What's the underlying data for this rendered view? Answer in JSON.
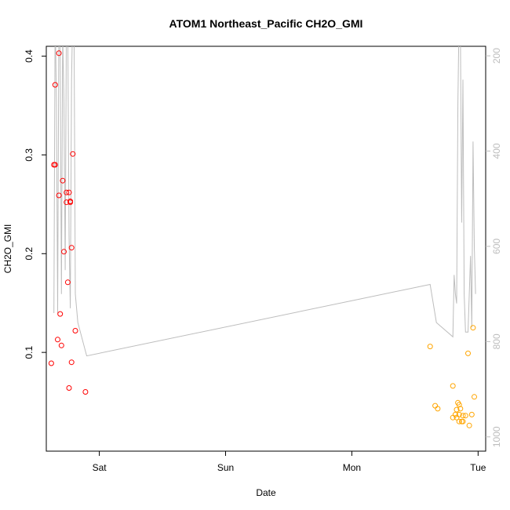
{
  "chart_data": {
    "type": "scatter",
    "title": "ATOM1 Northeast_Pacific CH2O_GMI",
    "xlabel": "Date",
    "ylabel": "CH2O_GMI",
    "x_range": [
      -0.42,
      3.06
    ],
    "ylim": [
      0.0,
      0.41
    ],
    "y2lim": [
      1030,
      180
    ],
    "x_ticks": [
      {
        "value": 0,
        "label": "Sat"
      },
      {
        "value": 1,
        "label": "Sun"
      },
      {
        "value": 2,
        "label": "Mon"
      },
      {
        "value": 3,
        "label": "Tue"
      }
    ],
    "y_ticks": [
      {
        "value": 0.1,
        "label": "0.1"
      },
      {
        "value": 0.2,
        "label": "0.2"
      },
      {
        "value": 0.3,
        "label": "0.3"
      },
      {
        "value": 0.4,
        "label": "0.4"
      }
    ],
    "y2_ticks": [
      {
        "value": 200,
        "label": "200"
      },
      {
        "value": 400,
        "label": "400"
      },
      {
        "value": 600,
        "label": "600"
      },
      {
        "value": 800,
        "label": "800"
      },
      {
        "value": 1000,
        "label": "1000"
      }
    ],
    "series": [
      {
        "color": "#ff0000",
        "points": [
          {
            "x": -0.38,
            "y": 0.089
          },
          {
            "x": -0.36,
            "y": 0.29
          },
          {
            "x": -0.35,
            "y": 0.29
          },
          {
            "x": -0.35,
            "y": 0.371
          },
          {
            "x": -0.33,
            "y": 0.113
          },
          {
            "x": -0.32,
            "y": 0.403
          },
          {
            "x": -0.32,
            "y": 0.259
          },
          {
            "x": -0.31,
            "y": 0.139
          },
          {
            "x": -0.3,
            "y": 0.107
          },
          {
            "x": -0.29,
            "y": 0.274
          },
          {
            "x": -0.28,
            "y": 0.202
          },
          {
            "x": -0.26,
            "y": 0.262
          },
          {
            "x": -0.26,
            "y": 0.252
          },
          {
            "x": -0.25,
            "y": 0.171
          },
          {
            "x": -0.24,
            "y": 0.064
          },
          {
            "x": -0.24,
            "y": 0.262
          },
          {
            "x": -0.23,
            "y": 0.252
          },
          {
            "x": -0.23,
            "y": 0.253
          },
          {
            "x": -0.22,
            "y": 0.09
          },
          {
            "x": -0.22,
            "y": 0.206
          },
          {
            "x": -0.21,
            "y": 0.301
          },
          {
            "x": -0.19,
            "y": 0.122
          },
          {
            "x": -0.11,
            "y": 0.06
          }
        ]
      },
      {
        "color": "#ffa500",
        "points": [
          {
            "x": 2.62,
            "y": 0.106
          },
          {
            "x": 2.66,
            "y": 0.046
          },
          {
            "x": 2.68,
            "y": 0.043
          },
          {
            "x": 2.8,
            "y": 0.066
          },
          {
            "x": 2.8,
            "y": 0.034
          },
          {
            "x": 2.82,
            "y": 0.037
          },
          {
            "x": 2.83,
            "y": 0.042
          },
          {
            "x": 2.83,
            "y": 0.034
          },
          {
            "x": 2.84,
            "y": 0.049
          },
          {
            "x": 2.85,
            "y": 0.037
          },
          {
            "x": 2.85,
            "y": 0.047
          },
          {
            "x": 2.85,
            "y": 0.03
          },
          {
            "x": 2.86,
            "y": 0.043
          },
          {
            "x": 2.87,
            "y": 0.03
          },
          {
            "x": 2.88,
            "y": 0.036
          },
          {
            "x": 2.88,
            "y": 0.03
          },
          {
            "x": 2.9,
            "y": 0.036
          },
          {
            "x": 2.92,
            "y": 0.099
          },
          {
            "x": 2.93,
            "y": 0.026
          },
          {
            "x": 2.95,
            "y": 0.037
          },
          {
            "x": 2.96,
            "y": 0.125
          },
          {
            "x": 2.97,
            "y": 0.055
          }
        ]
      }
    ],
    "pressure_line": {
      "color": "#bdbdbd",
      "points": [
        {
          "x": -0.36,
          "y": 740
        },
        {
          "x": -0.35,
          "y": 100
        },
        {
          "x": -0.34,
          "y": 300
        },
        {
          "x": -0.33,
          "y": 740
        },
        {
          "x": -0.32,
          "y": 100
        },
        {
          "x": -0.31,
          "y": 200
        },
        {
          "x": -0.3,
          "y": 700
        },
        {
          "x": -0.29,
          "y": 150
        },
        {
          "x": -0.28,
          "y": 300
        },
        {
          "x": -0.27,
          "y": 650
        },
        {
          "x": -0.26,
          "y": 100
        },
        {
          "x": -0.25,
          "y": 150
        },
        {
          "x": -0.24,
          "y": 580
        },
        {
          "x": -0.23,
          "y": 730
        },
        {
          "x": -0.22,
          "y": 250
        },
        {
          "x": -0.21,
          "y": 100
        },
        {
          "x": -0.2,
          "y": 150
        },
        {
          "x": -0.19,
          "y": 700
        },
        {
          "x": -0.17,
          "y": 760
        },
        {
          "x": -0.1,
          "y": 830
        },
        {
          "x": 2.62,
          "y": 680
        },
        {
          "x": 2.67,
          "y": 760
        },
        {
          "x": 2.8,
          "y": 790
        },
        {
          "x": 2.81,
          "y": 660
        },
        {
          "x": 2.82,
          "y": 700
        },
        {
          "x": 2.83,
          "y": 720
        },
        {
          "x": 2.84,
          "y": 300
        },
        {
          "x": 2.85,
          "y": 100
        },
        {
          "x": 2.86,
          "y": 150
        },
        {
          "x": 2.87,
          "y": 550
        },
        {
          "x": 2.88,
          "y": 250
        },
        {
          "x": 2.89,
          "y": 700
        },
        {
          "x": 2.9,
          "y": 780
        },
        {
          "x": 2.92,
          "y": 780
        },
        {
          "x": 2.94,
          "y": 620
        },
        {
          "x": 2.95,
          "y": 770
        },
        {
          "x": 2.96,
          "y": 380
        },
        {
          "x": 2.97,
          "y": 600
        },
        {
          "x": 2.98,
          "y": 700
        }
      ]
    }
  }
}
